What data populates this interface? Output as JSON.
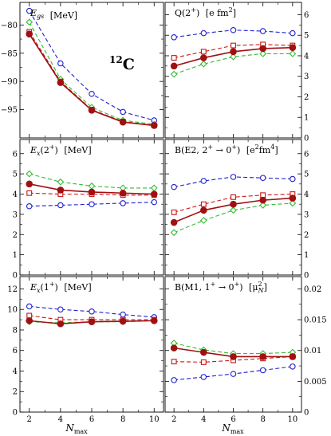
{
  "figure": {
    "colors": {
      "blue": "#1f1fd0",
      "green": "#33bb33",
      "red": "#cc1414",
      "darkred": "#a01010",
      "frame": "#000000"
    },
    "markers": {
      "blue": "circle-open",
      "green": "diamond-open",
      "red": "square-open",
      "darkred": "filled-circle"
    },
    "xlabel": "N",
    "xlabel_sub": "max"
  },
  "chart_data": [
    {
      "type": "line",
      "id": "egs",
      "label": "E",
      "label_sub": "gs",
      "label_unit": "[MeV]",
      "annotation": "C",
      "annotation_sup": "12",
      "x": [
        2,
        4,
        6,
        8,
        10
      ],
      "ylim": [
        -100,
        -76
      ],
      "y_ticks": [
        -95,
        -90,
        -85,
        -80
      ],
      "x_ticks": [
        2,
        4,
        6,
        8,
        10
      ],
      "yaxis_side": "left",
      "series": [
        {
          "color": "blue",
          "style": "dashed",
          "marker": "circle-open",
          "values": [
            -77.5,
            -86.8,
            -92.2,
            -95.4,
            -96.9
          ]
        },
        {
          "color": "green",
          "style": "dashed",
          "marker": "diamond-open",
          "values": [
            -79.5,
            -89.6,
            -94.6,
            -96.9,
            -97.6
          ]
        },
        {
          "color": "red",
          "style": "dashed",
          "marker": "square-open",
          "values": [
            -81.2,
            -90.0,
            -95.0,
            -97.1,
            -97.8
          ]
        },
        {
          "color": "darkred",
          "style": "solid",
          "marker": "filled-circle",
          "values": [
            -81.6,
            -90.2,
            -95.1,
            -97.2,
            -97.8
          ]
        }
      ]
    },
    {
      "type": "line",
      "id": "q2",
      "label": "Q(2",
      "label_sup": "+",
      "label_tail": ")",
      "label_unit": "[e fm",
      "label_unit_sup": "2",
      "label_unit_tail": "]",
      "x": [
        2,
        4,
        6,
        8,
        10
      ],
      "ylim": [
        0,
        6.6
      ],
      "y_ticks": [
        0,
        1,
        2,
        3,
        4,
        5,
        6
      ],
      "x_ticks": [
        2,
        4,
        6,
        8,
        10
      ],
      "yaxis_side": "right",
      "series": [
        {
          "color": "blue",
          "style": "dashed",
          "marker": "circle-open",
          "values": [
            4.9,
            5.1,
            5.25,
            5.2,
            5.1
          ]
        },
        {
          "color": "green",
          "style": "dashed",
          "marker": "diamond-open",
          "values": [
            3.1,
            3.6,
            3.95,
            4.1,
            4.1
          ]
        },
        {
          "color": "red",
          "style": "dashed",
          "marker": "square-open",
          "values": [
            3.9,
            4.2,
            4.5,
            4.55,
            4.5
          ]
        },
        {
          "color": "darkred",
          "style": "solid",
          "marker": "filled-circle",
          "values": [
            3.5,
            3.9,
            4.2,
            4.35,
            4.4
          ]
        }
      ]
    },
    {
      "type": "line",
      "id": "ex2",
      "label": "E",
      "label_sub": "x",
      "label_tail": "(2",
      "label_sup": "+",
      "label_tail2": ")",
      "label_unit": "[MeV]",
      "x": [
        2,
        4,
        6,
        8,
        10
      ],
      "ylim": [
        0,
        6.7
      ],
      "y_ticks": [
        0,
        1,
        2,
        3,
        4,
        5,
        6
      ],
      "x_ticks": [
        2,
        4,
        6,
        8,
        10
      ],
      "yaxis_side": "left",
      "series": [
        {
          "color": "blue",
          "style": "dashed",
          "marker": "circle-open",
          "values": [
            3.4,
            3.45,
            3.5,
            3.55,
            3.6
          ]
        },
        {
          "color": "green",
          "style": "dashed",
          "marker": "diamond-open",
          "values": [
            5.0,
            4.6,
            4.4,
            4.3,
            4.3
          ]
        },
        {
          "color": "red",
          "style": "dashed",
          "marker": "square-open",
          "values": [
            4.05,
            4.0,
            4.0,
            3.95,
            3.95
          ]
        },
        {
          "color": "darkred",
          "style": "solid",
          "marker": "filled-circle",
          "values": [
            4.5,
            4.2,
            4.1,
            4.05,
            4.0
          ]
        }
      ]
    },
    {
      "type": "line",
      "id": "be2",
      "label": "B(E2, 2",
      "label_sup": "+",
      "label_tail": " → 0",
      "label_sup2": "+",
      "label_tail2": ")",
      "label_unit": "[e",
      "label_unit_sup": "2",
      "label_unit_tail": "fm",
      "label_unit_sup2": "4",
      "label_unit_tail2": "]",
      "x": [
        2,
        4,
        6,
        8,
        10
      ],
      "ylim": [
        0,
        6.7
      ],
      "y_ticks": [
        0,
        1,
        2,
        3,
        4,
        5,
        6
      ],
      "x_ticks": [
        2,
        4,
        6,
        8,
        10
      ],
      "yaxis_side": "right",
      "series": [
        {
          "color": "blue",
          "style": "dashed",
          "marker": "circle-open",
          "values": [
            4.35,
            4.65,
            4.85,
            4.8,
            4.75
          ]
        },
        {
          "color": "green",
          "style": "dashed",
          "marker": "diamond-open",
          "values": [
            2.1,
            2.7,
            3.2,
            3.45,
            3.55
          ]
        },
        {
          "color": "red",
          "style": "dashed",
          "marker": "square-open",
          "values": [
            3.1,
            3.5,
            3.85,
            3.95,
            4.0
          ]
        },
        {
          "color": "darkred",
          "style": "solid",
          "marker": "filled-circle",
          "values": [
            2.6,
            3.2,
            3.5,
            3.7,
            3.8
          ]
        }
      ]
    },
    {
      "type": "line",
      "id": "ex1",
      "label": "E",
      "label_sub": "x",
      "label_tail": "(1",
      "label_sup": "+",
      "label_tail2": ")",
      "label_unit": "[MeV]",
      "x": [
        2,
        4,
        6,
        8,
        10
      ],
      "ylim": [
        0,
        13.2
      ],
      "y_ticks": [
        0,
        2,
        4,
        6,
        8,
        10,
        12
      ],
      "x_ticks": [
        2,
        4,
        6,
        8,
        10
      ],
      "yaxis_side": "left",
      "series": [
        {
          "color": "blue",
          "style": "dashed",
          "marker": "circle-open",
          "values": [
            10.3,
            10.0,
            9.8,
            9.5,
            9.25
          ]
        },
        {
          "color": "green",
          "style": "dashed",
          "marker": "diamond-open",
          "values": [
            8.8,
            8.7,
            8.8,
            8.8,
            8.9
          ]
        },
        {
          "color": "red",
          "style": "dashed",
          "marker": "square-open",
          "values": [
            9.4,
            9.0,
            9.0,
            9.0,
            9.0
          ]
        },
        {
          "color": "darkred",
          "style": "solid",
          "marker": "filled-circle",
          "values": [
            8.9,
            8.6,
            8.8,
            8.85,
            8.9
          ]
        }
      ]
    },
    {
      "type": "line",
      "id": "bm1",
      "label": "B(M1, 1",
      "label_sup": "+",
      "label_tail": " → 0",
      "label_sup2": "+",
      "label_tail2": ")",
      "label_unit": "[μ",
      "label_unit_sup": "2",
      "label_unit_sub": "N",
      "label_unit_tail": "]",
      "x": [
        2,
        4,
        6,
        8,
        10
      ],
      "ylim": [
        0,
        0.022
      ],
      "y_ticks": [
        0,
        0.005,
        0.01,
        0.015,
        0.02
      ],
      "y_tick_labels": [
        "0",
        "0.005",
        "0.01",
        "0.015",
        "0.02"
      ],
      "x_ticks": [
        2,
        4,
        6,
        8,
        10
      ],
      "yaxis_side": "right",
      "series": [
        {
          "color": "blue",
          "style": "dashed",
          "marker": "circle-open",
          "values": [
            0.0052,
            0.0057,
            0.0062,
            0.0068,
            0.0074
          ]
        },
        {
          "color": "green",
          "style": "dashed",
          "marker": "diamond-open",
          "values": [
            0.0112,
            0.0101,
            0.0095,
            0.0095,
            0.0097
          ]
        },
        {
          "color": "red",
          "style": "dashed",
          "marker": "square-open",
          "values": [
            0.0082,
            0.0081,
            0.0084,
            0.0087,
            0.009
          ]
        },
        {
          "color": "darkred",
          "style": "solid",
          "marker": "filled-circle",
          "values": [
            0.0104,
            0.0097,
            0.009,
            0.009,
            0.009
          ]
        }
      ]
    }
  ]
}
